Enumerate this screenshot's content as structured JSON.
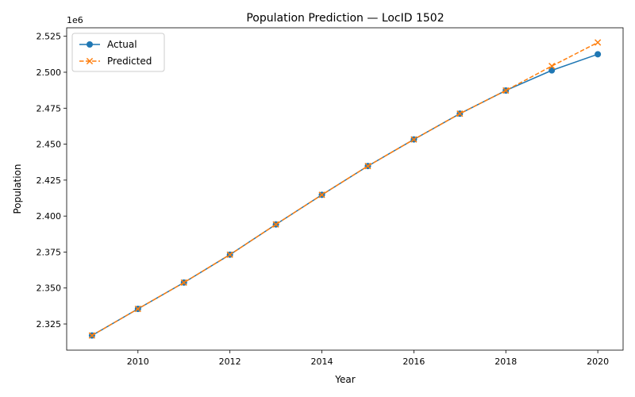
{
  "chart_data": {
    "type": "line",
    "title": "Population Prediction — LocID 1502",
    "xlabel": "Year",
    "ylabel": "Population",
    "y_offset_label": "1e6",
    "x": [
      2009,
      2010,
      2011,
      2012,
      2013,
      2014,
      2015,
      2016,
      2017,
      2018,
      2019,
      2020
    ],
    "series": [
      {
        "name": "Actual",
        "color": "#1f77b4",
        "marker": "circle",
        "line_style": "solid",
        "values": [
          2317000,
          2335500,
          2353800,
          2373200,
          2394200,
          2414800,
          2434800,
          2453300,
          2471200,
          2487300,
          2501300,
          2512500
        ]
      },
      {
        "name": "Predicted",
        "color": "#ff7f0e",
        "marker": "x",
        "line_style": "dashed",
        "values": [
          2317000,
          2335500,
          2353800,
          2373200,
          2394200,
          2414800,
          2434800,
          2453300,
          2471200,
          2487300,
          2504300,
          2520700
        ]
      }
    ],
    "x_ticks": [
      2010,
      2012,
      2014,
      2016,
      2018,
      2020
    ],
    "y_ticks": [
      2.325,
      2.35,
      2.375,
      2.4,
      2.425,
      2.45,
      2.475,
      2.5,
      2.525
    ],
    "y_tick_labels": [
      "2.325",
      "2.350",
      "2.375",
      "2.400",
      "2.425",
      "2.450",
      "2.475",
      "2.500",
      "2.525"
    ],
    "xlim": [
      2008.45,
      2020.55
    ],
    "ylim": [
      2306800,
      2530900
    ],
    "y_scale": 1000000,
    "grid": false,
    "legend_position": "top-left"
  }
}
